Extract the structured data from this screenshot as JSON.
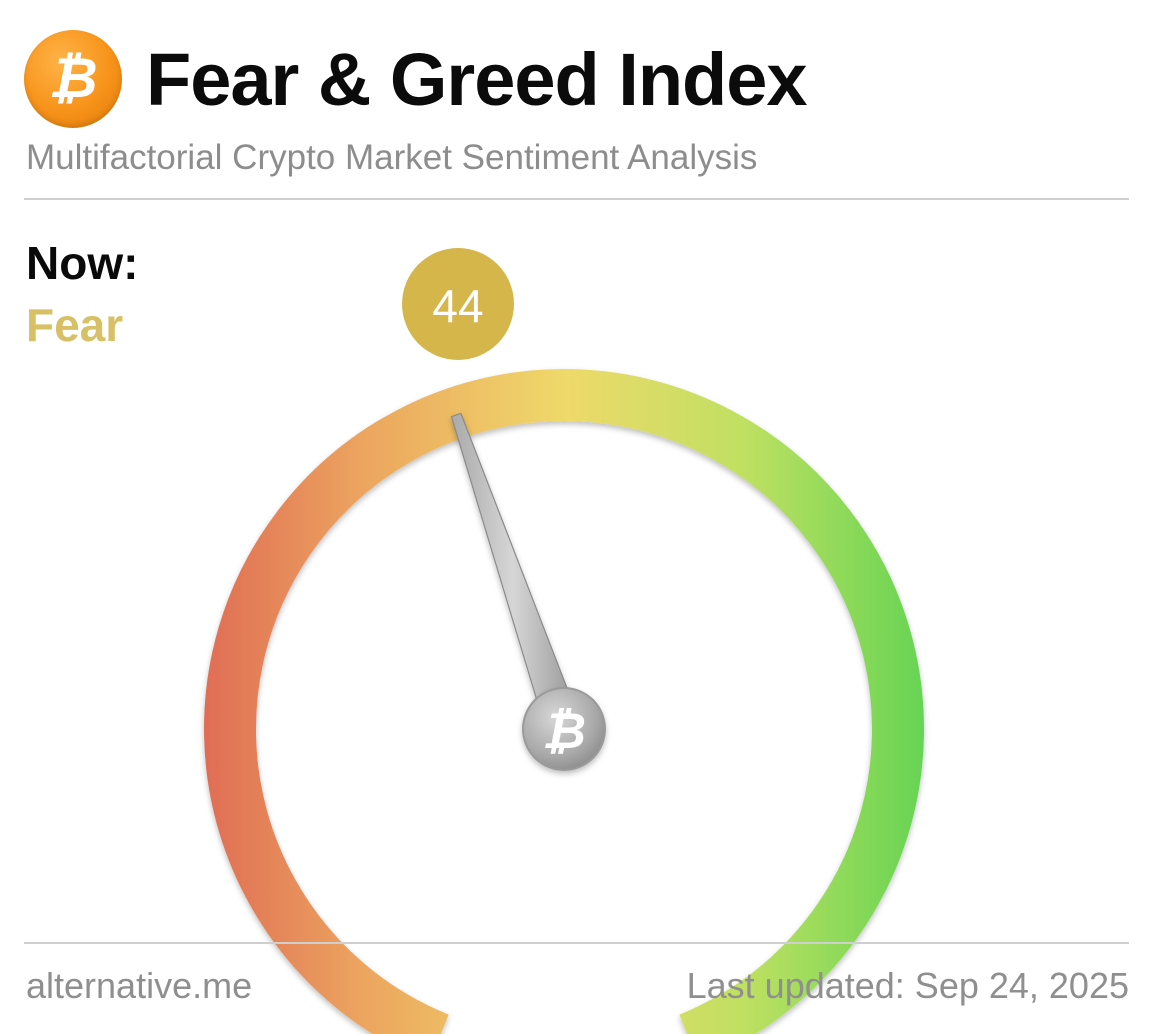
{
  "header": {
    "logo_symbol": "₿",
    "logo_icon": "bitcoin-icon",
    "title": "Fear & Greed Index",
    "subtitle": "Multifactorial Crypto Market Sentiment Analysis"
  },
  "status": {
    "now_label": "Now:",
    "classification": "Fear",
    "classification_color": "#d8c066"
  },
  "gauge": {
    "value": 44,
    "value_text": "44",
    "min": 0,
    "max": 100,
    "badge_color": "#d4b64a",
    "needle_hub_symbol": "₿",
    "colors": {
      "low": "#e06d55",
      "mid": "#efd96a",
      "high": "#66d453"
    }
  },
  "footer": {
    "source": "alternative.me",
    "last_updated": "Last updated: Sep 24, 2025"
  }
}
